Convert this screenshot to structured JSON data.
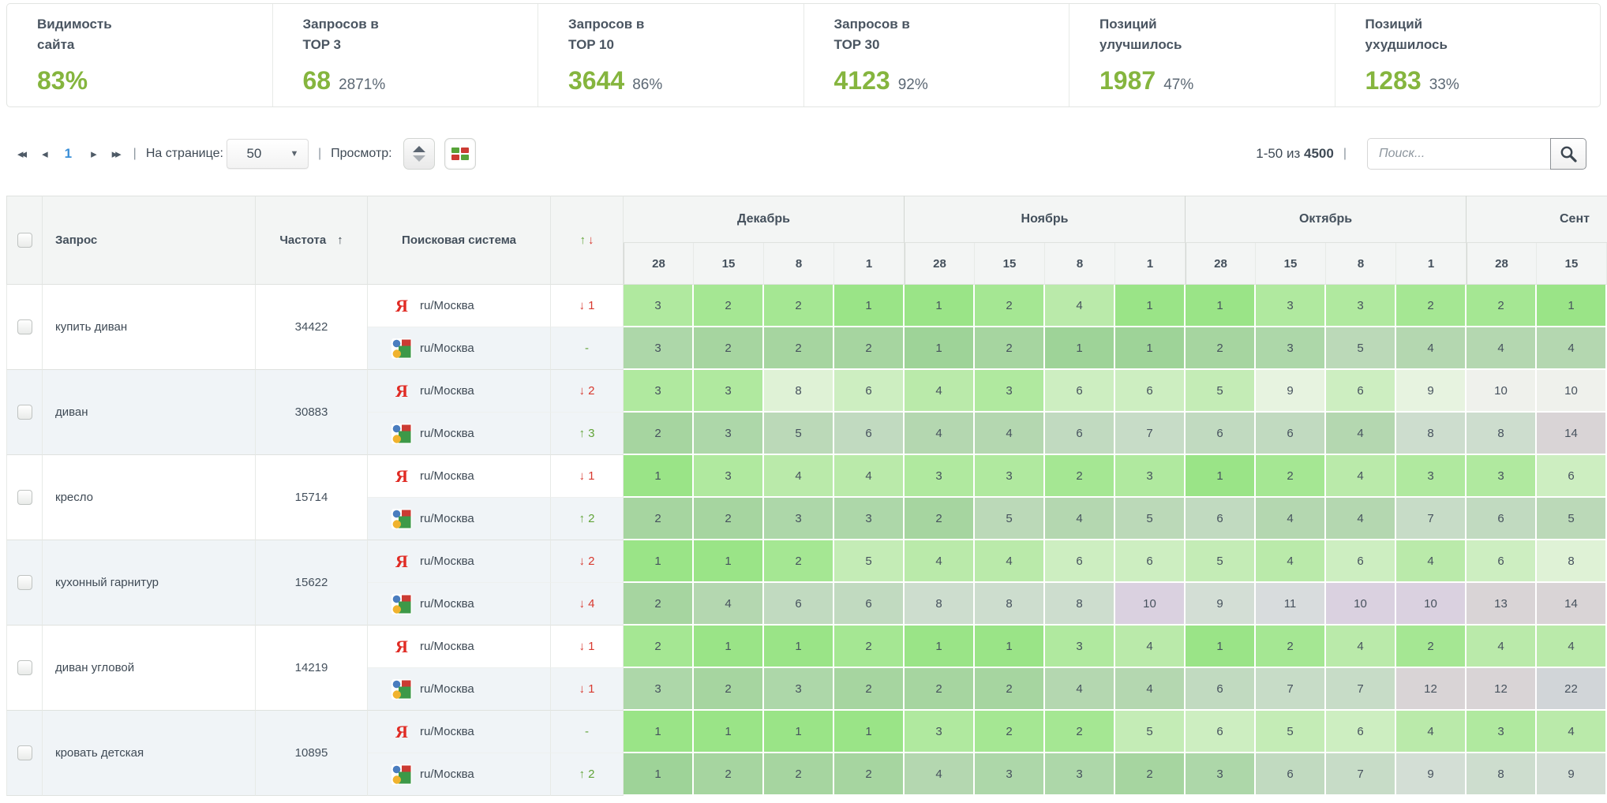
{
  "stats": [
    {
      "label": "Видимость\nсайта",
      "value": "83%",
      "sub": ""
    },
    {
      "label": "Запросов в\nTOP 3",
      "value": "68",
      "sub": "2871%"
    },
    {
      "label": "Запросов в\nTOP 10",
      "value": "3644",
      "sub": "86%"
    },
    {
      "label": "Запросов в\nTOP 30",
      "value": "4123",
      "sub": "92%"
    },
    {
      "label": "Позиций\nулучшилось",
      "value": "1987",
      "sub": "47%"
    },
    {
      "label": "Позиций\nухудшилось",
      "value": "1283",
      "sub": "33%"
    }
  ],
  "toolbar": {
    "first": "◂◂",
    "prev": "◂",
    "next": "▸",
    "last": "▸▸",
    "page": "1",
    "sep": "|",
    "per_page_label": "На странице:",
    "per_page_value": "50",
    "view_label": "Просмотр:",
    "range_prefix": "1-50 из",
    "range_total": "4500",
    "search_placeholder": "Поиск..."
  },
  "table": {
    "header": {
      "query": "Запрос",
      "frequency": "Частота",
      "freq_sort": "↑",
      "engine": "Поисковая система",
      "up": "↑",
      "down": "↓"
    },
    "months": [
      {
        "label": "Декабрь",
        "dates": [
          "28",
          "15",
          "8",
          "1"
        ]
      },
      {
        "label": "Ноябрь",
        "dates": [
          "28",
          "15",
          "8",
          "1"
        ]
      },
      {
        "label": "Октябрь",
        "dates": [
          "28",
          "15",
          "8",
          "1"
        ]
      },
      {
        "label": "Сент",
        "dates": [
          "28",
          "15"
        ],
        "cut": true
      }
    ],
    "palette": {
      "greens": [
        "#9ae487",
        "#a5e793",
        "#b0e99f",
        "#baeaaa",
        "#c4ecb6",
        "#cdeec1",
        "#d6f0cc",
        "#dff2d6",
        "#e7f3e0"
      ],
      "over9": "#eff1ec",
      "lav": "#f2e1f1",
      "rose": "#f0e5e2",
      "grey": "#e4e7e4",
      "stripe_mix": "#a8b0bd",
      "stripe_amount": 0.32,
      "accent_green": "#85b53e",
      "up_green": "#61a438",
      "down_red": "#d8392f",
      "page_blue": "#3a8fd8"
    },
    "groups": [
      {
        "query": "купить диван",
        "frequency": "34422",
        "rows": [
          {
            "engine": "yandex",
            "region": "ru/Москва",
            "change": "↓ 1",
            "dir": "down",
            "values": [
              3,
              2,
              2,
              1,
              1,
              2,
              4,
              1,
              1,
              3,
              3,
              2,
              2,
              1
            ],
            "tones": []
          },
          {
            "engine": "google",
            "region": "ru/Москва",
            "change": "-",
            "dir": "flat",
            "values": [
              3,
              2,
              2,
              2,
              1,
              2,
              1,
              1,
              2,
              3,
              5,
              4,
              4,
              4
            ],
            "tones": []
          }
        ]
      },
      {
        "query": "диван",
        "frequency": "30883",
        "rows": [
          {
            "engine": "yandex",
            "region": "ru/Москва",
            "change": "↓ 2",
            "dir": "down",
            "values": [
              3,
              3,
              8,
              6,
              4,
              3,
              6,
              6,
              5,
              9,
              6,
              9,
              10,
              10
            ],
            "tones": []
          },
          {
            "engine": "google",
            "region": "ru/Москва",
            "change": "↑ 3",
            "dir": "up",
            "values": [
              2,
              3,
              5,
              6,
              4,
              4,
              6,
              7,
              6,
              6,
              4,
              8,
              8,
              14
            ],
            "tones": [
              null,
              null,
              null,
              null,
              null,
              null,
              null,
              null,
              null,
              null,
              null,
              null,
              null,
              "rose"
            ]
          }
        ]
      },
      {
        "query": "кресло",
        "frequency": "15714",
        "rows": [
          {
            "engine": "yandex",
            "region": "ru/Москва",
            "change": "↓ 1",
            "dir": "down",
            "values": [
              1,
              3,
              4,
              4,
              3,
              3,
              2,
              3,
              1,
              2,
              4,
              3,
              3,
              6
            ],
            "tones": []
          },
          {
            "engine": "google",
            "region": "ru/Москва",
            "change": "↑ 2",
            "dir": "up",
            "values": [
              2,
              2,
              3,
              3,
              2,
              5,
              4,
              5,
              6,
              4,
              4,
              7,
              6,
              5
            ],
            "tones": []
          }
        ]
      },
      {
        "query": "кухонный гарнитур",
        "frequency": "15622",
        "rows": [
          {
            "engine": "yandex",
            "region": "ru/Москва",
            "change": "↓ 2",
            "dir": "down",
            "values": [
              1,
              1,
              2,
              5,
              4,
              4,
              6,
              6,
              5,
              4,
              6,
              4,
              6,
              8
            ],
            "tones": []
          },
          {
            "engine": "google",
            "region": "ru/Москва",
            "change": "↓ 4",
            "dir": "down",
            "values": [
              2,
              4,
              6,
              6,
              8,
              8,
              8,
              10,
              9,
              11,
              10,
              10,
              13,
              14
            ],
            "tones": [
              null,
              null,
              null,
              null,
              null,
              null,
              null,
              "lav",
              null,
              null,
              "lav",
              "lav",
              "rose",
              "rose"
            ]
          }
        ]
      },
      {
        "query": "диван угловой",
        "frequency": "14219",
        "rows": [
          {
            "engine": "yandex",
            "region": "ru/Москва",
            "change": "↓ 1",
            "dir": "down",
            "values": [
              2,
              1,
              1,
              2,
              1,
              1,
              3,
              4,
              1,
              2,
              4,
              2,
              4,
              4
            ],
            "tones": []
          },
          {
            "engine": "google",
            "region": "ru/Москва",
            "change": "↓ 1",
            "dir": "down",
            "values": [
              3,
              2,
              3,
              2,
              2,
              2,
              4,
              4,
              6,
              7,
              7,
              12,
              12,
              22
            ],
            "tones": [
              null,
              null,
              null,
              null,
              null,
              null,
              null,
              null,
              null,
              null,
              null,
              "rose",
              "rose",
              "grey"
            ]
          }
        ]
      },
      {
        "query": "кровать детская",
        "frequency": "10895",
        "rows": [
          {
            "engine": "yandex",
            "region": "ru/Москва",
            "change": "-",
            "dir": "flat",
            "values": [
              1,
              1,
              1,
              1,
              3,
              2,
              2,
              5,
              6,
              5,
              6,
              4,
              3,
              4
            ],
            "tones": []
          },
          {
            "engine": "google",
            "region": "ru/Москва",
            "change": "↑ 2",
            "dir": "up",
            "values": [
              1,
              2,
              2,
              2,
              4,
              3,
              3,
              2,
              3,
              6,
              7,
              9,
              8,
              9
            ],
            "tones": []
          }
        ]
      }
    ]
  }
}
